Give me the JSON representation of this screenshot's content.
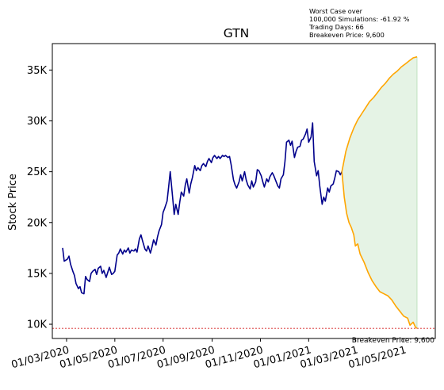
{
  "chart_data": {
    "type": "line",
    "title": "GTN",
    "ylabel": "Stock Price",
    "xlabel": "",
    "ylim": [
      8600,
      37600
    ],
    "xlim": [
      "2020-02-12",
      "2021-06-10"
    ],
    "y_ticks": [
      {
        "value": 10000,
        "label": "10K"
      },
      {
        "value": 15000,
        "label": "15K"
      },
      {
        "value": 20000,
        "label": "20K"
      },
      {
        "value": 25000,
        "label": "25K"
      },
      {
        "value": 30000,
        "label": "30K"
      },
      {
        "value": 35000,
        "label": "35K"
      }
    ],
    "x_ticks": [
      {
        "date": "2020-03-01",
        "label": "01/03/2020"
      },
      {
        "date": "2020-05-01",
        "label": "01/05/2020"
      },
      {
        "date": "2020-07-01",
        "label": "01/07/2020"
      },
      {
        "date": "2020-09-01",
        "label": "01/09/2020"
      },
      {
        "date": "2020-11-01",
        "label": "01/11/2020"
      },
      {
        "date": "2021-01-01",
        "label": "01/01/2021"
      },
      {
        "date": "2021-03-01",
        "label": "01/03/2021"
      },
      {
        "date": "2021-05-01",
        "label": "01/05/2021"
      }
    ],
    "annotation_lines": [
      "Worst Case over",
      "100,000 Simulations: -61.92 %",
      "Trading Days: 66",
      "Breakeven Price: 9,600"
    ],
    "breakeven": {
      "value": 9600,
      "label": "Breakeven Price: 9,600",
      "color": "#d62728"
    },
    "colors": {
      "history": "#00008b",
      "projection": "#ffa500",
      "band": "#2ca02c"
    },
    "history": [
      [
        "2020-02-25",
        17500
      ],
      [
        "2020-02-27",
        16200
      ],
      [
        "2020-03-02",
        16400
      ],
      [
        "2020-03-04",
        16700
      ],
      [
        "2020-03-06",
        15900
      ],
      [
        "2020-03-09",
        15200
      ],
      [
        "2020-03-11",
        14800
      ],
      [
        "2020-03-13",
        14000
      ],
      [
        "2020-03-16",
        13500
      ],
      [
        "2020-03-18",
        13700
      ],
      [
        "2020-03-20",
        13100
      ],
      [
        "2020-03-23",
        13000
      ],
      [
        "2020-03-25",
        14700
      ],
      [
        "2020-03-27",
        14400
      ],
      [
        "2020-03-30",
        14200
      ],
      [
        "2020-04-01",
        15000
      ],
      [
        "2020-04-03",
        15200
      ],
      [
        "2020-04-06",
        15400
      ],
      [
        "2020-04-08",
        14900
      ],
      [
        "2020-04-10",
        15500
      ],
      [
        "2020-04-13",
        15700
      ],
      [
        "2020-04-15",
        15000
      ],
      [
        "2020-04-17",
        15300
      ],
      [
        "2020-04-20",
        14600
      ],
      [
        "2020-04-22",
        15100
      ],
      [
        "2020-04-24",
        15600
      ],
      [
        "2020-04-27",
        14900
      ],
      [
        "2020-04-29",
        15000
      ],
      [
        "2020-05-01",
        15200
      ],
      [
        "2020-05-04",
        16800
      ],
      [
        "2020-05-06",
        17000
      ],
      [
        "2020-05-08",
        17400
      ],
      [
        "2020-05-11",
        16900
      ],
      [
        "2020-05-13",
        17300
      ],
      [
        "2020-05-15",
        17100
      ],
      [
        "2020-05-18",
        17500
      ],
      [
        "2020-05-20",
        17000
      ],
      [
        "2020-05-22",
        17300
      ],
      [
        "2020-05-25",
        17200
      ],
      [
        "2020-05-27",
        17400
      ],
      [
        "2020-05-29",
        17100
      ],
      [
        "2020-06-01",
        18400
      ],
      [
        "2020-06-03",
        18800
      ],
      [
        "2020-06-05",
        18200
      ],
      [
        "2020-06-08",
        17400
      ],
      [
        "2020-06-10",
        17200
      ],
      [
        "2020-06-12",
        17700
      ],
      [
        "2020-06-15",
        17000
      ],
      [
        "2020-06-17",
        17600
      ],
      [
        "2020-06-19",
        18300
      ],
      [
        "2020-06-22",
        17800
      ],
      [
        "2020-06-24",
        18600
      ],
      [
        "2020-06-26",
        19200
      ],
      [
        "2020-06-29",
        19800
      ],
      [
        "2020-07-01",
        21000
      ],
      [
        "2020-07-03",
        21400
      ],
      [
        "2020-07-06",
        22100
      ],
      [
        "2020-07-08",
        23500
      ],
      [
        "2020-07-10",
        25000
      ],
      [
        "2020-07-13",
        22500
      ],
      [
        "2020-07-15",
        20800
      ],
      [
        "2020-07-17",
        21800
      ],
      [
        "2020-07-20",
        20800
      ],
      [
        "2020-07-22",
        22000
      ],
      [
        "2020-07-24",
        23000
      ],
      [
        "2020-07-27",
        22600
      ],
      [
        "2020-07-29",
        23700
      ],
      [
        "2020-07-31",
        24300
      ],
      [
        "2020-08-03",
        22900
      ],
      [
        "2020-08-05",
        23800
      ],
      [
        "2020-08-07",
        24400
      ],
      [
        "2020-08-10",
        25600
      ],
      [
        "2020-08-12",
        25100
      ],
      [
        "2020-08-14",
        25400
      ],
      [
        "2020-08-17",
        25100
      ],
      [
        "2020-08-19",
        25600
      ],
      [
        "2020-08-21",
        25800
      ],
      [
        "2020-08-24",
        25500
      ],
      [
        "2020-08-26",
        26000
      ],
      [
        "2020-08-28",
        26300
      ],
      [
        "2020-08-31",
        25900
      ],
      [
        "2020-09-02",
        26400
      ],
      [
        "2020-09-04",
        26600
      ],
      [
        "2020-09-07",
        26300
      ],
      [
        "2020-09-09",
        26500
      ],
      [
        "2020-09-11",
        26300
      ],
      [
        "2020-09-14",
        26600
      ],
      [
        "2020-09-16",
        26500
      ],
      [
        "2020-09-18",
        26600
      ],
      [
        "2020-09-21",
        26400
      ],
      [
        "2020-09-23",
        26500
      ],
      [
        "2020-09-25",
        25700
      ],
      [
        "2020-09-28",
        24200
      ],
      [
        "2020-09-30",
        23700
      ],
      [
        "2020-10-02",
        23400
      ],
      [
        "2020-10-05",
        24000
      ],
      [
        "2020-10-07",
        24700
      ],
      [
        "2020-10-09",
        24100
      ],
      [
        "2020-10-12",
        25000
      ],
      [
        "2020-10-14",
        24200
      ],
      [
        "2020-10-16",
        23700
      ],
      [
        "2020-10-19",
        23300
      ],
      [
        "2020-10-21",
        24100
      ],
      [
        "2020-10-23",
        23500
      ],
      [
        "2020-10-26",
        24000
      ],
      [
        "2020-10-28",
        25200
      ],
      [
        "2020-10-30",
        25100
      ],
      [
        "2020-11-02",
        24600
      ],
      [
        "2020-11-04",
        24000
      ],
      [
        "2020-11-06",
        23500
      ],
      [
        "2020-11-09",
        24300
      ],
      [
        "2020-11-11",
        24000
      ],
      [
        "2020-11-13",
        24500
      ],
      [
        "2020-11-16",
        24900
      ],
      [
        "2020-11-18",
        24600
      ],
      [
        "2020-11-20",
        24200
      ],
      [
        "2020-11-23",
        23600
      ],
      [
        "2020-11-25",
        23400
      ],
      [
        "2020-11-27",
        24300
      ],
      [
        "2020-11-30",
        24700
      ],
      [
        "2020-12-02",
        26000
      ],
      [
        "2020-12-04",
        27900
      ],
      [
        "2020-12-07",
        28100
      ],
      [
        "2020-12-09",
        27600
      ],
      [
        "2020-12-11",
        28000
      ],
      [
        "2020-12-14",
        26400
      ],
      [
        "2020-12-16",
        27000
      ],
      [
        "2020-12-18",
        27400
      ],
      [
        "2020-12-21",
        27500
      ],
      [
        "2020-12-23",
        28100
      ],
      [
        "2020-12-25",
        28200
      ],
      [
        "2020-12-28",
        28700
      ],
      [
        "2020-12-30",
        29200
      ],
      [
        "2021-01-01",
        27900
      ],
      [
        "2021-01-04",
        28400
      ],
      [
        "2021-01-06",
        29800
      ],
      [
        "2021-01-08",
        26000
      ],
      [
        "2021-01-11",
        24600
      ],
      [
        "2021-01-13",
        25100
      ],
      [
        "2021-01-15",
        23600
      ],
      [
        "2021-01-18",
        21800
      ],
      [
        "2021-01-20",
        22500
      ],
      [
        "2021-01-22",
        22100
      ],
      [
        "2021-01-25",
        23400
      ],
      [
        "2021-01-27",
        23000
      ],
      [
        "2021-01-29",
        23600
      ],
      [
        "2021-02-01",
        23800
      ],
      [
        "2021-02-03",
        24400
      ],
      [
        "2021-02-05",
        25100
      ],
      [
        "2021-02-08",
        25000
      ],
      [
        "2021-02-10",
        24700
      ],
      [
        "2021-02-12",
        25000
      ]
    ],
    "upper": [
      [
        "2021-02-12",
        25000
      ],
      [
        "2021-02-17",
        27000
      ],
      [
        "2021-02-22",
        28300
      ],
      [
        "2021-02-27",
        29300
      ],
      [
        "2021-03-04",
        30100
      ],
      [
        "2021-03-09",
        30700
      ],
      [
        "2021-03-14",
        31300
      ],
      [
        "2021-03-19",
        31900
      ],
      [
        "2021-03-24",
        32300
      ],
      [
        "2021-03-29",
        32800
      ],
      [
        "2021-04-03",
        33300
      ],
      [
        "2021-04-08",
        33700
      ],
      [
        "2021-04-13",
        34200
      ],
      [
        "2021-04-18",
        34600
      ],
      [
        "2021-04-23",
        34900
      ],
      [
        "2021-04-28",
        35300
      ],
      [
        "2021-05-03",
        35600
      ],
      [
        "2021-05-08",
        35900
      ],
      [
        "2021-05-13",
        36200
      ],
      [
        "2021-05-18",
        36300
      ]
    ],
    "lower": [
      [
        "2021-02-12",
        25000
      ],
      [
        "2021-02-15",
        22500
      ],
      [
        "2021-02-18",
        20900
      ],
      [
        "2021-02-21",
        20000
      ],
      [
        "2021-02-24",
        19500
      ],
      [
        "2021-02-27",
        18800
      ],
      [
        "2021-03-01",
        17700
      ],
      [
        "2021-03-04",
        17900
      ],
      [
        "2021-03-07",
        16900
      ],
      [
        "2021-03-12",
        16100
      ],
      [
        "2021-03-17",
        15100
      ],
      [
        "2021-03-22",
        14300
      ],
      [
        "2021-03-27",
        13700
      ],
      [
        "2021-04-01",
        13200
      ],
      [
        "2021-04-06",
        13000
      ],
      [
        "2021-04-11",
        12800
      ],
      [
        "2021-04-16",
        12400
      ],
      [
        "2021-04-21",
        11800
      ],
      [
        "2021-04-26",
        11300
      ],
      [
        "2021-05-01",
        10800
      ],
      [
        "2021-05-06",
        10600
      ],
      [
        "2021-05-09",
        9900
      ],
      [
        "2021-05-13",
        10200
      ],
      [
        "2021-05-16",
        9700
      ],
      [
        "2021-05-18",
        9600
      ]
    ]
  }
}
